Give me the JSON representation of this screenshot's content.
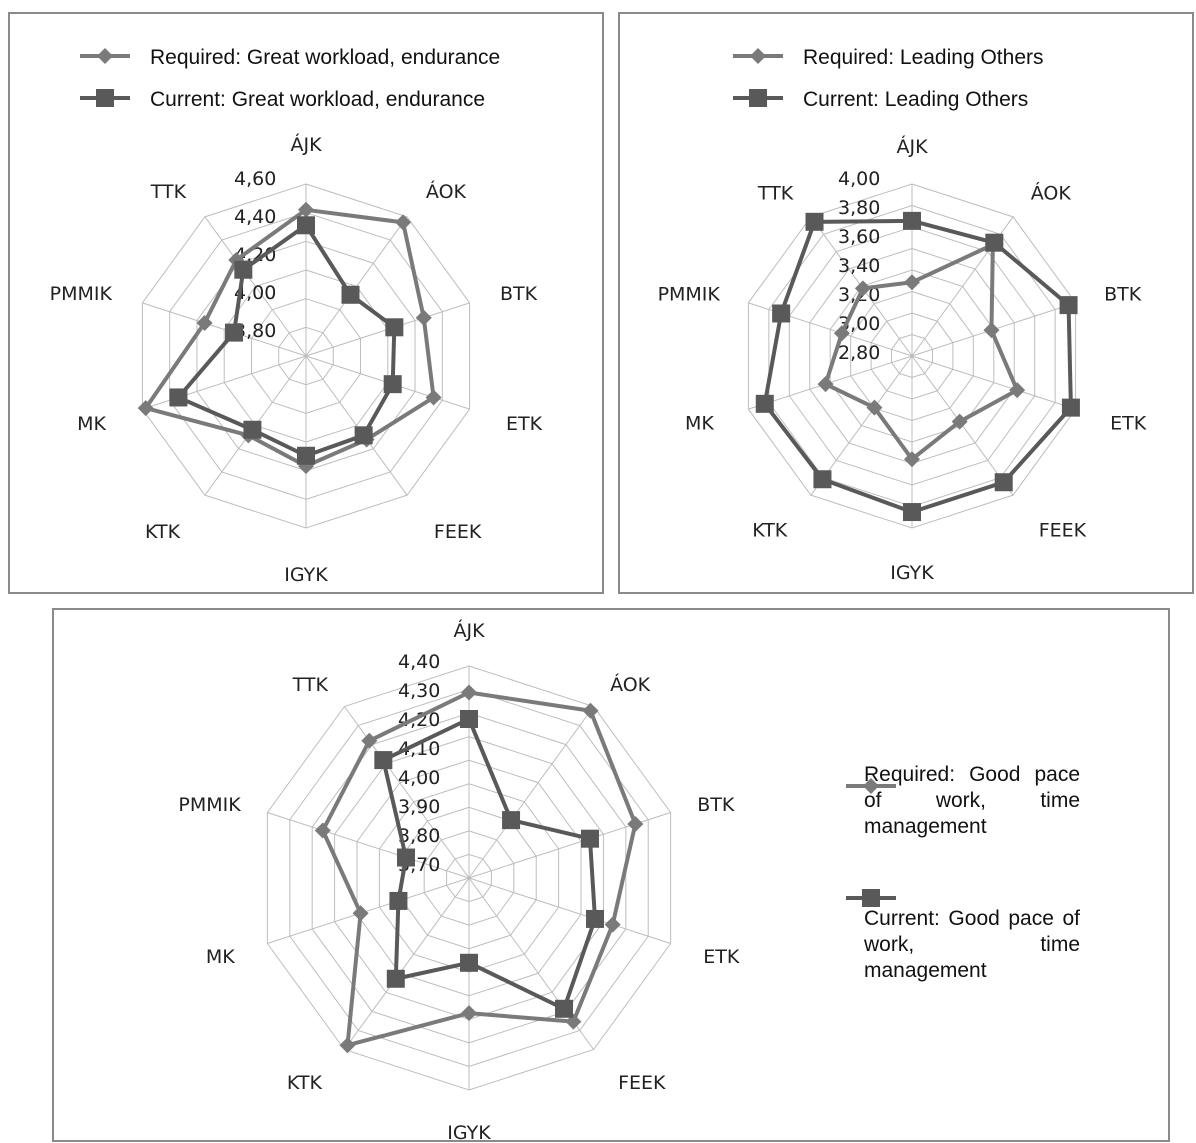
{
  "colors": {
    "required": "#7a7a7a",
    "current": "#595959",
    "grid": "#bdbdbd",
    "border": "#8a8a8a"
  },
  "chart_data": [
    {
      "type": "radar",
      "categories": [
        "ÁJK",
        "ÁOK",
        "BTK",
        "ETK",
        "FEEK",
        "IGYK",
        "KTK",
        "MK",
        "PMMIK",
        "TTK"
      ],
      "rlim": [
        3.6,
        4.6
      ],
      "ticks": [
        "4,60",
        "4,40",
        "4,20",
        "4,00",
        "3,80"
      ],
      "legend_position": "top",
      "series": [
        {
          "name": "Required: Great workload, endurance",
          "marker": "diamond",
          "values": [
            4.45,
            4.56,
            4.32,
            4.38,
            4.2,
            4.24,
            4.17,
            4.58,
            4.22,
            4.29
          ]
        },
        {
          "name": "Current: Great workload, endurance",
          "marker": "square",
          "values": [
            4.36,
            4.04,
            4.14,
            4.13,
            4.17,
            4.18,
            4.13,
            4.38,
            4.04,
            4.22
          ]
        }
      ]
    },
    {
      "type": "radar",
      "categories": [
        "ÁJK",
        "ÁOK",
        "BTK",
        "ETK",
        "FEEK",
        "IGYK",
        "KTK",
        "MK",
        "PMMIK",
        "TTK"
      ],
      "rlim": [
        2.6,
        4.0
      ],
      "ticks": [
        "4,00",
        "3,80",
        "3,60",
        "3,40",
        "3,20",
        "3,00",
        "2,80"
      ],
      "legend_position": "top",
      "series": [
        {
          "name": "Required: Leading Others",
          "marker": "diamond",
          "values": [
            3.2,
            3.72,
            3.28,
            3.5,
            3.26,
            3.44,
            3.12,
            3.34,
            3.2,
            3.28
          ]
        },
        {
          "name": "Current: Leading Others",
          "marker": "square",
          "values": [
            3.7,
            3.74,
            3.94,
            3.96,
            3.87,
            3.87,
            3.84,
            3.86,
            3.72,
            3.95
          ]
        }
      ]
    },
    {
      "type": "radar",
      "categories": [
        "ÁJK",
        "ÁOK",
        "BTK",
        "ETK",
        "FEEK",
        "IGYK",
        "KTK",
        "MK",
        "PMMIK",
        "TTK"
      ],
      "rlim": [
        3.6,
        4.4
      ],
      "ticks": [
        "4,40",
        "4,30",
        "4,20",
        "4,10",
        "4,00",
        "3,90",
        "3,80",
        "3,70"
      ],
      "legend_position": "right",
      "series": [
        {
          "name": "Required: Good pace of work, time management",
          "marker": "diamond",
          "values": [
            4.3,
            4.38,
            4.26,
            4.17,
            4.27,
            4.11,
            4.38,
            4.03,
            4.18,
            4.24
          ]
        },
        {
          "name": "Current: Good pace of work, time management",
          "marker": "square",
          "values": [
            4.2,
            3.87,
            4.08,
            4.1,
            4.21,
            3.92,
            4.07,
            3.88,
            3.85,
            4.15
          ]
        }
      ]
    }
  ]
}
